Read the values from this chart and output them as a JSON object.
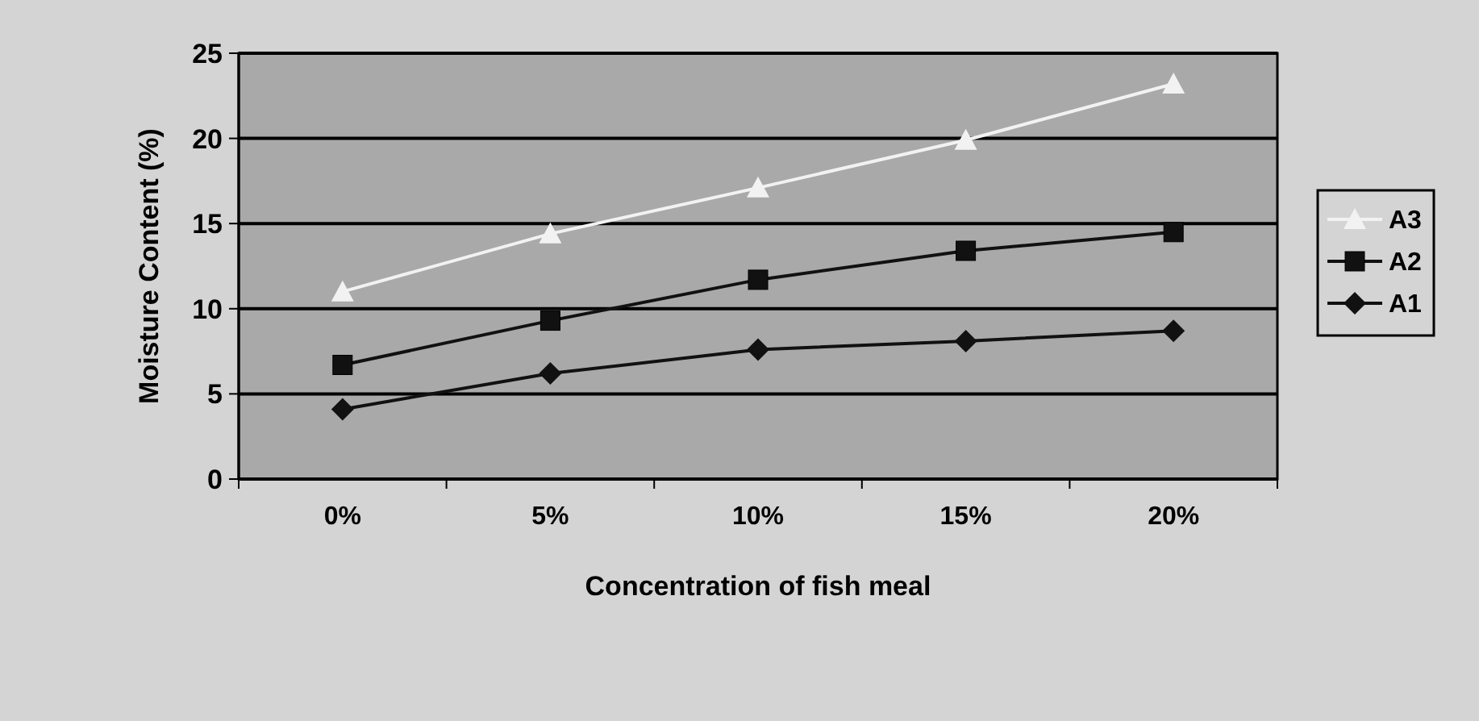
{
  "chart_data": {
    "type": "line",
    "xlabel": "Concentration of fish meal",
    "ylabel": "Moisture Content (%)",
    "categories": [
      "0%",
      "5%",
      "10%",
      "15%",
      "20%"
    ],
    "series": [
      {
        "name": "A3",
        "color": "#f2f2f2",
        "marker": "triangle",
        "values": [
          11.0,
          14.4,
          17.1,
          19.9,
          23.2
        ]
      },
      {
        "name": "A2",
        "color": "#111111",
        "marker": "square",
        "values": [
          6.7,
          9.3,
          11.7,
          13.4,
          14.5
        ]
      },
      {
        "name": "A1",
        "color": "#111111",
        "marker": "diamond",
        "values": [
          4.1,
          6.2,
          7.6,
          8.1,
          8.7
        ]
      }
    ],
    "ylim": [
      0,
      25
    ],
    "yticks": [
      0,
      5,
      10,
      15,
      20,
      25
    ],
    "grid": "y",
    "legend": "right",
    "line_style": "solid"
  }
}
